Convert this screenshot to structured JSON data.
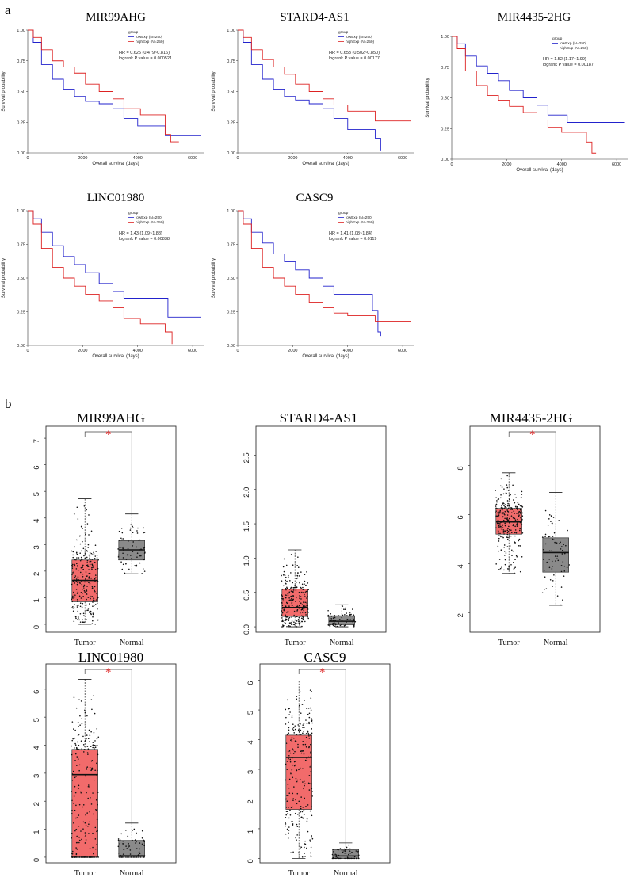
{
  "panels": {
    "a": "a",
    "b": "b"
  },
  "colors": {
    "low": "#2222cc",
    "high": "#dd2222",
    "tumor": "#f26b6b",
    "normal": "#8a8a8a",
    "star": "#e03030"
  },
  "chart_data": [
    {
      "type": "line",
      "id": "km1",
      "title": "MIR99AHG",
      "xlabel": "Overall survival (days)",
      "ylabel": "Survival probability",
      "xlim": [
        0,
        6400
      ],
      "ylim": [
        0,
        1
      ],
      "xticks": [
        "0",
        "2000",
        "4000",
        "6000"
      ],
      "yticks": [
        "0.00",
        "0.25",
        "0.50",
        "0.75",
        "1.00"
      ],
      "legend_title": "group",
      "series": [
        {
          "name": "lowExp (N=250)",
          "color": "#2222cc",
          "x": [
            0,
            200,
            500,
            900,
            1300,
            1700,
            2100,
            2600,
            3100,
            3500,
            4000,
            4600,
            5000,
            6300
          ],
          "y": [
            1,
            0.9,
            0.72,
            0.6,
            0.52,
            0.46,
            0.42,
            0.4,
            0.36,
            0.28,
            0.22,
            0.22,
            0.14,
            0.14
          ]
        },
        {
          "name": "highExp (N=250)",
          "color": "#dd2222",
          "x": [
            0,
            200,
            500,
            900,
            1300,
            1700,
            2100,
            2600,
            3100,
            3500,
            4100,
            4600,
            5000,
            5200,
            5500
          ],
          "y": [
            1,
            0.94,
            0.84,
            0.75,
            0.7,
            0.65,
            0.56,
            0.5,
            0.44,
            0.36,
            0.31,
            0.31,
            0.15,
            0.09,
            0.09
          ]
        }
      ],
      "annotation": [
        "HR = 0.625 (0.479~0.816)",
        "logrank P value = 0.000521"
      ]
    },
    {
      "type": "line",
      "id": "km2",
      "title": "STARD4-AS1",
      "xlabel": "Overall survival (days)",
      "ylabel": "Survival probability",
      "xlim": [
        0,
        6400
      ],
      "ylim": [
        0,
        1
      ],
      "xticks": [
        "0",
        "2000",
        "4000",
        "6000"
      ],
      "yticks": [
        "0.00",
        "0.25",
        "0.50",
        "0.75",
        "1.00"
      ],
      "legend_title": "group",
      "series": [
        {
          "name": "lowExp (N=250)",
          "color": "#2222cc",
          "x": [
            0,
            200,
            500,
            900,
            1300,
            1700,
            2100,
            2600,
            3100,
            3500,
            4000,
            4500,
            5000,
            5200
          ],
          "y": [
            1,
            0.9,
            0.72,
            0.6,
            0.52,
            0.46,
            0.43,
            0.4,
            0.36,
            0.28,
            0.19,
            0.19,
            0.12,
            0.02
          ]
        },
        {
          "name": "highExp (N=250)",
          "color": "#dd2222",
          "x": [
            0,
            200,
            500,
            900,
            1300,
            1700,
            2100,
            2600,
            3100,
            3500,
            4000,
            4600,
            5000,
            6300
          ],
          "y": [
            1,
            0.94,
            0.84,
            0.76,
            0.7,
            0.64,
            0.56,
            0.5,
            0.44,
            0.39,
            0.34,
            0.34,
            0.26,
            0.26
          ]
        }
      ],
      "annotation": [
        "HR = 0.653 (0.502~0.850)",
        "logrank P value = 0.00177"
      ]
    },
    {
      "type": "line",
      "id": "km3",
      "title": "MIR4435-2HG",
      "xlabel": "Overall survival (days)",
      "ylabel": "Survival probability",
      "xlim": [
        0,
        6400
      ],
      "ylim": [
        0,
        1
      ],
      "xticks": [
        "0",
        "2000",
        "4000",
        "6000"
      ],
      "yticks": [
        "0.00",
        "0.25",
        "0.50",
        "0.75",
        "1.00"
      ],
      "legend_title": "group",
      "series": [
        {
          "name": "lowExp (N=250)",
          "color": "#2222cc",
          "x": [
            0,
            200,
            500,
            900,
            1300,
            1700,
            2100,
            2600,
            3100,
            3500,
            4200,
            6300
          ],
          "y": [
            1,
            0.94,
            0.84,
            0.76,
            0.7,
            0.64,
            0.56,
            0.5,
            0.44,
            0.36,
            0.3,
            0.3
          ]
        },
        {
          "name": "highExp (N=250)",
          "color": "#dd2222",
          "x": [
            0,
            200,
            500,
            900,
            1300,
            1700,
            2100,
            2600,
            3100,
            3500,
            4000,
            4600,
            4900,
            5100,
            5250
          ],
          "y": [
            1,
            0.9,
            0.72,
            0.6,
            0.52,
            0.48,
            0.43,
            0.38,
            0.32,
            0.26,
            0.22,
            0.22,
            0.14,
            0.05,
            0.05
          ]
        }
      ],
      "annotation": [
        "HR = 1.52 (1.17~1.99)",
        "logrank P value = 0.00187"
      ]
    },
    {
      "type": "line",
      "id": "km4",
      "title": "LINC01980",
      "xlabel": "Overall survival (days)",
      "ylabel": "Survival probability",
      "xlim": [
        0,
        6400
      ],
      "ylim": [
        0,
        1
      ],
      "xticks": [
        "0",
        "2000",
        "4000",
        "6000"
      ],
      "yticks": [
        "0.00",
        "0.25",
        "0.50",
        "0.75",
        "1.00"
      ],
      "legend_title": "group",
      "series": [
        {
          "name": "lowExp (N=250)",
          "color": "#2222cc",
          "x": [
            0,
            200,
            500,
            900,
            1300,
            1700,
            2100,
            2600,
            3100,
            3500,
            4000,
            4700,
            5100,
            6300
          ],
          "y": [
            1,
            0.94,
            0.84,
            0.74,
            0.66,
            0.6,
            0.54,
            0.46,
            0.4,
            0.35,
            0.35,
            0.35,
            0.21,
            0.21
          ]
        },
        {
          "name": "highExp (N=250)",
          "color": "#dd2222",
          "x": [
            0,
            200,
            500,
            900,
            1300,
            1700,
            2100,
            2600,
            3100,
            3500,
            4100,
            4700,
            5000,
            5250
          ],
          "y": [
            1,
            0.9,
            0.72,
            0.58,
            0.5,
            0.44,
            0.38,
            0.33,
            0.28,
            0.2,
            0.16,
            0.16,
            0.1,
            0.01
          ]
        }
      ],
      "annotation": [
        "HR = 1.43 (1.09~1.88)",
        "logrank P value = 0.00838"
      ]
    },
    {
      "type": "line",
      "id": "km5",
      "title": "CASC9",
      "xlabel": "Overall survival (days)",
      "ylabel": "Survival probability",
      "xlim": [
        0,
        6400
      ],
      "ylim": [
        0,
        1
      ],
      "xticks": [
        "0",
        "2000",
        "4000",
        "6000"
      ],
      "yticks": [
        "0.00",
        "0.25",
        "0.50",
        "0.75",
        "1.00"
      ],
      "legend_title": "group",
      "series": [
        {
          "name": "lowExp (N=250)",
          "color": "#2222cc",
          "x": [
            0,
            200,
            500,
            900,
            1300,
            1700,
            2100,
            2600,
            3100,
            3500,
            4000,
            4600,
            4900,
            5100,
            5200
          ],
          "y": [
            1,
            0.94,
            0.84,
            0.76,
            0.68,
            0.62,
            0.56,
            0.5,
            0.44,
            0.38,
            0.38,
            0.38,
            0.26,
            0.1,
            0.07
          ]
        },
        {
          "name": "highExp (N=250)",
          "color": "#dd2222",
          "x": [
            0,
            200,
            500,
            900,
            1300,
            1700,
            2100,
            2600,
            3100,
            3500,
            4000,
            4600,
            5000,
            6300
          ],
          "y": [
            1,
            0.9,
            0.72,
            0.58,
            0.5,
            0.44,
            0.38,
            0.32,
            0.28,
            0.24,
            0.22,
            0.22,
            0.18,
            0.18
          ]
        }
      ],
      "annotation": [
        "HR = 1.41 (1.08~1.84)",
        "logrank P value = 0.0119"
      ]
    },
    {
      "type": "box",
      "id": "box1",
      "title": "MIR99AHG",
      "ylim": [
        -0.3,
        7.45
      ],
      "yticks": [
        0,
        1,
        2,
        3,
        4,
        5,
        6,
        7
      ],
      "categories": [
        "Tumor",
        "Normal"
      ],
      "significant": true,
      "star": "*",
      "boxes": [
        {
          "name": "Tumor",
          "min": 0,
          "q1": 0.85,
          "median": 1.65,
          "q3": 2.42,
          "max": 4.72
        },
        {
          "name": "Normal",
          "min": 1.9,
          "q1": 2.42,
          "median": 2.8,
          "q3": 3.15,
          "max": 4.15
        }
      ]
    },
    {
      "type": "box",
      "id": "box2",
      "title": "STARD4-AS1",
      "ylim": [
        -0.08,
        2.92
      ],
      "yticks": [
        0,
        0.5,
        1,
        1.5,
        2,
        2.5
      ],
      "ytick_labels": [
        "0.0",
        "0.5",
        "1.0",
        "1.5",
        "2.0",
        "2.5"
      ],
      "categories": [
        "Tumor",
        "Normal"
      ],
      "significant": false,
      "boxes": [
        {
          "name": "Tumor",
          "min": 0,
          "q1": 0.15,
          "median": 0.28,
          "q3": 0.55,
          "max": 1.12
        },
        {
          "name": "Normal",
          "min": 0,
          "q1": 0.03,
          "median": 0.08,
          "q3": 0.16,
          "max": 0.32
        }
      ]
    },
    {
      "type": "box",
      "id": "box3",
      "title": "MIR4435-2HG",
      "ylim": [
        1.2,
        9.6
      ],
      "yticks": [
        2,
        4,
        6,
        8
      ],
      "categories": [
        "Tumor",
        "Normal"
      ],
      "significant": true,
      "star": "*",
      "boxes": [
        {
          "name": "Tumor",
          "min": 3.6,
          "q1": 5.2,
          "median": 5.7,
          "q3": 6.25,
          "max": 7.7
        },
        {
          "name": "Normal",
          "min": 2.3,
          "q1": 3.65,
          "median": 4.45,
          "q3": 5.05,
          "max": 6.9
        }
      ]
    },
    {
      "type": "box",
      "id": "box4",
      "title": "LINC01980",
      "ylim": [
        -0.2,
        6.9
      ],
      "yticks": [
        0,
        1,
        2,
        3,
        4,
        5,
        6
      ],
      "categories": [
        "Tumor",
        "Normal"
      ],
      "significant": true,
      "star": "*",
      "boxes": [
        {
          "name": "Tumor",
          "min": 0,
          "q1": 0,
          "median": 2.95,
          "q3": 3.85,
          "max": 6.35
        },
        {
          "name": "Normal",
          "min": 0,
          "q1": 0,
          "median": 0.05,
          "q3": 0.6,
          "max": 1.22
        }
      ]
    },
    {
      "type": "box",
      "id": "box5",
      "title": "CASC9",
      "ylim": [
        -0.15,
        6.55
      ],
      "yticks": [
        0,
        1,
        2,
        3,
        4,
        5,
        6
      ],
      "categories": [
        "Tumor",
        "Normal"
      ],
      "significant": true,
      "star": "*",
      "boxes": [
        {
          "name": "Tumor",
          "min": 0,
          "q1": 1.65,
          "median": 3.4,
          "q3": 4.15,
          "max": 5.98
        },
        {
          "name": "Normal",
          "min": 0,
          "q1": 0,
          "median": 0.08,
          "q3": 0.3,
          "max": 0.52
        }
      ]
    }
  ]
}
